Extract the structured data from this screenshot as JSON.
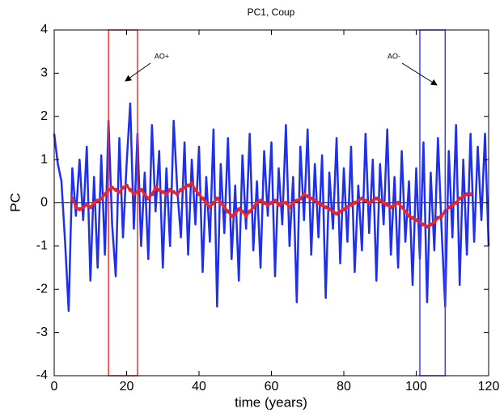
{
  "chart_data": {
    "type": "line",
    "title": "PC1, Coup",
    "xlabel": "time (years)",
    "ylabel": "PC",
    "x": [
      0,
      1,
      2,
      3,
      4,
      5,
      6,
      7,
      8,
      9,
      10,
      11,
      12,
      13,
      14,
      15,
      16,
      17,
      18,
      19,
      20,
      21,
      22,
      23,
      24,
      25,
      26,
      27,
      28,
      29,
      30,
      31,
      32,
      33,
      34,
      35,
      36,
      37,
      38,
      39,
      40,
      41,
      42,
      43,
      44,
      45,
      46,
      47,
      48,
      49,
      50,
      51,
      52,
      53,
      54,
      55,
      56,
      57,
      58,
      59,
      60,
      61,
      62,
      63,
      64,
      65,
      66,
      67,
      68,
      69,
      70,
      71,
      72,
      73,
      74,
      75,
      76,
      77,
      78,
      79,
      80,
      81,
      82,
      83,
      84,
      85,
      86,
      87,
      88,
      89,
      90,
      91,
      92,
      93,
      94,
      95,
      96,
      97,
      98,
      99,
      100,
      101,
      102,
      103,
      104,
      105,
      106,
      107,
      108,
      109,
      110,
      111,
      112,
      113,
      114,
      115,
      116,
      117,
      118,
      119,
      120
    ],
    "series": [
      {
        "color": "#1f2ff0",
        "values": [
          1.6,
          0.9,
          0.5,
          -0.9,
          -2.5,
          0.8,
          -0.3,
          1.0,
          -0.4,
          1.3,
          -1.8,
          0.6,
          -1.5,
          1.1,
          -1.2,
          1.9,
          -0.5,
          -1.7,
          1.5,
          -0.8,
          0.9,
          2.3,
          -0.6,
          1.6,
          -1.0,
          0.7,
          -1.3,
          1.8,
          -0.2,
          1.2,
          -1.5,
          0.8,
          -1.0,
          1.9,
          0.3,
          -0.8,
          1.4,
          -1.2,
          1.0,
          -0.5,
          1.3,
          -1.6,
          0.6,
          -0.9,
          1.7,
          -2.4,
          0.9,
          -0.7,
          1.5,
          -1.3,
          0.4,
          -1.8,
          1.1,
          -0.6,
          1.6,
          -1.1,
          0.5,
          -1.5,
          1.2,
          -0.3,
          1.4,
          -1.7,
          0.8,
          -0.5,
          1.8,
          -1.0,
          0.6,
          -2.3,
          1.3,
          -0.4,
          1.7,
          -1.2,
          0.9,
          -0.8,
          1.1,
          -2.2,
          0.7,
          -0.6,
          1.5,
          -1.4,
          0.8,
          -0.9,
          1.3,
          -1.6,
          0.4,
          -1.1,
          1.6,
          -0.7,
          1.0,
          -1.8,
          0.9,
          -0.5,
          1.7,
          -1.2,
          0.6,
          -1.5,
          1.2,
          -0.9,
          0.5,
          -1.9,
          0.8,
          -1.3,
          1.4,
          -2.3,
          0.7,
          -1.1,
          1.5,
          -0.6,
          -2.4,
          1.2,
          -0.8,
          1.8,
          -1.9,
          1.0,
          -1.2,
          1.6,
          -0.9,
          1.3,
          -0.4,
          1.6,
          -1.0
        ]
      },
      {
        "color": "#e8262a",
        "values": [
          null,
          null,
          null,
          null,
          null,
          0.1,
          -0.1,
          -0.15,
          -0.1,
          -0.05,
          -0.1,
          0.0,
          0.05,
          0.1,
          0.2,
          0.3,
          0.35,
          0.3,
          0.25,
          0.35,
          0.4,
          0.3,
          0.2,
          0.25,
          0.3,
          0.2,
          0.1,
          0.2,
          0.35,
          0.3,
          0.25,
          0.2,
          0.3,
          0.25,
          0.2,
          0.3,
          0.35,
          0.4,
          0.45,
          0.3,
          0.2,
          0.1,
          0.0,
          -0.1,
          0.0,
          0.1,
          0.0,
          -0.1,
          -0.2,
          -0.3,
          -0.25,
          -0.15,
          -0.2,
          -0.3,
          -0.2,
          -0.1,
          0.0,
          0.05,
          0.0,
          -0.05,
          0.0,
          0.05,
          -0.05,
          0.0,
          0.0,
          -0.1,
          0.0,
          0.05,
          0.1,
          0.2,
          0.15,
          0.1,
          0.05,
          0.0,
          -0.05,
          -0.1,
          -0.15,
          -0.2,
          -0.25,
          -0.2,
          -0.15,
          -0.1,
          -0.05,
          0.0,
          0.05,
          0.1,
          0.05,
          0.0,
          0.05,
          0.1,
          0.05,
          0.0,
          -0.05,
          -0.1,
          -0.05,
          0.0,
          -0.1,
          -0.2,
          -0.3,
          -0.35,
          -0.4,
          -0.45,
          -0.5,
          -0.55,
          -0.5,
          -0.45,
          -0.35,
          -0.3,
          -0.2,
          -0.1,
          -0.05,
          0.0,
          0.1,
          0.15,
          0.2,
          0.2,
          null,
          null,
          null,
          null,
          null
        ]
      }
    ],
    "regions": [
      {
        "x": [
          15,
          23
        ],
        "color": "#f03030"
      },
      {
        "x": [
          101,
          108
        ],
        "color": "#4040f0"
      }
    ],
    "annotations": [
      {
        "text": "AO+"
      },
      {
        "text": "AO-"
      }
    ],
    "xlim": [
      0,
      120
    ],
    "xticks": [
      0,
      20,
      40,
      60,
      80,
      100,
      120
    ],
    "ylim": [
      -4,
      4
    ],
    "yticks": [
      -4,
      -3,
      -2,
      -1,
      0,
      1,
      2,
      3,
      4
    ]
  }
}
